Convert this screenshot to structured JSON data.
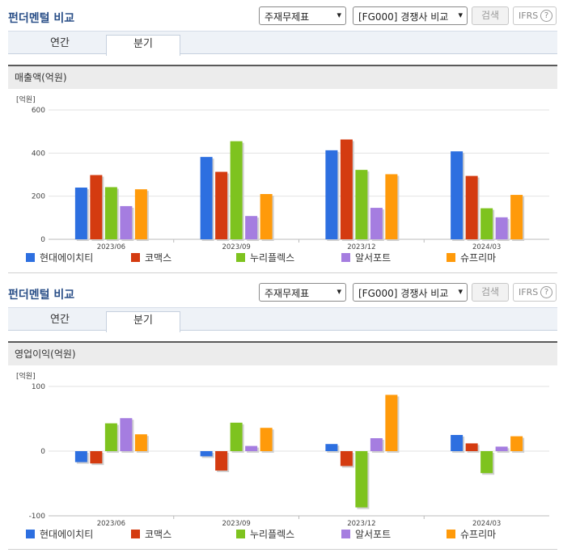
{
  "header": {
    "title": "펀더멘털 비교",
    "select1": "주재무제표",
    "select2": "[FG000] 경쟁사 비교",
    "search_label": "검색",
    "ifrs_label": "IFRS",
    "help_glyph": "?"
  },
  "tabs": {
    "annual": "연간",
    "quarterly": "분기"
  },
  "companies": [
    {
      "name": "현대에이치티",
      "color": "#2d6fe0"
    },
    {
      "name": "코맥스",
      "color": "#d43b10"
    },
    {
      "name": "누리플렉스",
      "color": "#7ec31f"
    },
    {
      "name": "알서포트",
      "color": "#a57de0"
    },
    {
      "name": "슈프리마",
      "color": "#ff9a0a"
    }
  ],
  "chart_data": [
    {
      "type": "bar",
      "title": "매출액(억원)",
      "unit": "[억원]",
      "categories": [
        "2023/06",
        "2023/09",
        "2023/12",
        "2024/03"
      ],
      "ylim": [
        0,
        600
      ],
      "yticks": [
        0,
        200,
        400,
        600
      ],
      "series": [
        {
          "name": "현대에이치티",
          "values": [
            240,
            382,
            413,
            408
          ]
        },
        {
          "name": "코맥스",
          "values": [
            298,
            313,
            463,
            294
          ]
        },
        {
          "name": "누리플렉스",
          "values": [
            242,
            455,
            322,
            144
          ]
        },
        {
          "name": "알서포트",
          "values": [
            154,
            108,
            146,
            102
          ]
        },
        {
          "name": "슈프리마",
          "values": [
            232,
            210,
            302,
            206
          ]
        }
      ],
      "grid": true,
      "legend": "bottom"
    },
    {
      "type": "bar",
      "title": "영업이익(억원)",
      "unit": "[억원]",
      "categories": [
        "2023/06",
        "2023/09",
        "2023/12",
        "2024/03"
      ],
      "ylim": [
        -100,
        100
      ],
      "yticks": [
        -100,
        0,
        100
      ],
      "series": [
        {
          "name": "현대에이치티",
          "values": [
            -17,
            -8,
            11,
            25
          ]
        },
        {
          "name": "코맥스",
          "values": [
            -19,
            -30,
            -23,
            12
          ]
        },
        {
          "name": "누리플렉스",
          "values": [
            43,
            44,
            -87,
            -34
          ]
        },
        {
          "name": "알서포트",
          "values": [
            51,
            8,
            20,
            7
          ]
        },
        {
          "name": "슈프리마",
          "values": [
            26,
            36,
            87,
            23
          ]
        }
      ],
      "grid": true,
      "legend": "bottom"
    }
  ]
}
